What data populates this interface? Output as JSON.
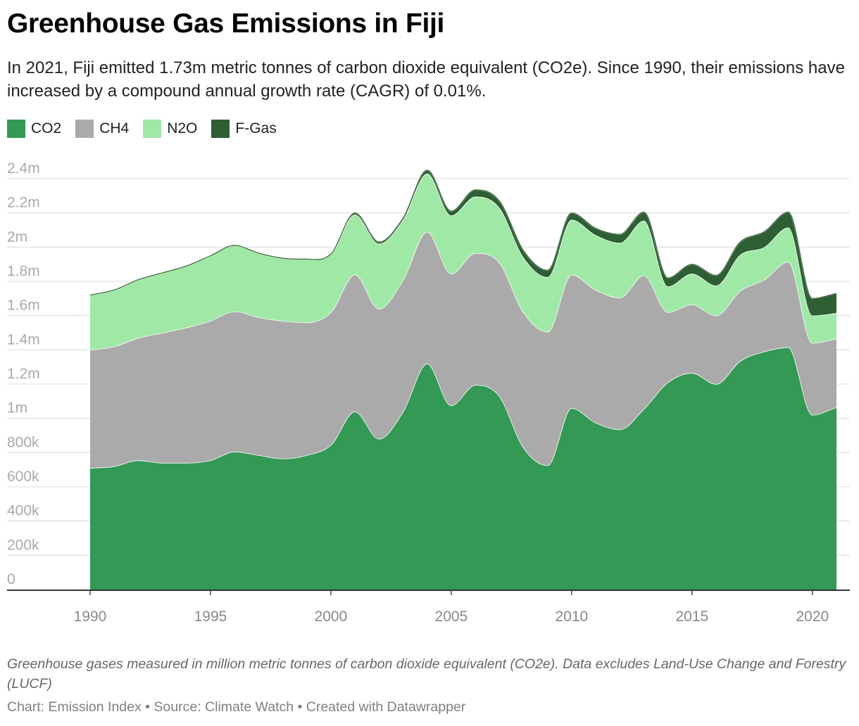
{
  "title": "Greenhouse Gas Emissions in Fiji",
  "subtitle": "In 2021, Fiji emitted 1.73m metric tonnes of carbon dioxide equivalent (CO2e). Since 1990, their emissions have increased by a compound annual growth rate (CAGR) of 0.01%.",
  "legend": [
    {
      "label": "CO2",
      "color": "#339955"
    },
    {
      "label": "CH4",
      "color": "#aaaaaa"
    },
    {
      "label": "N2O",
      "color": "#a0e8a6"
    },
    {
      "label": "F-Gas",
      "color": "#2e5e34"
    }
  ],
  "footer": {
    "note": "Greenhouse gases measured in million metric tonnes of carbon dioxide equivalent (CO2e). Data excludes Land-Use Change and Forestry (LUCF)",
    "credit": "Chart: Emission Index • Source: Climate Watch • Created with Datawrapper"
  },
  "chart_data": {
    "type": "area",
    "stacked": true,
    "x": [
      1990,
      1991,
      1992,
      1993,
      1994,
      1995,
      1996,
      1997,
      1998,
      1999,
      2000,
      2001,
      2002,
      2003,
      2004,
      2005,
      2006,
      2007,
      2008,
      2009,
      2010,
      2011,
      2012,
      2013,
      2014,
      2015,
      2016,
      2017,
      2018,
      2019,
      2020,
      2021
    ],
    "series": [
      {
        "name": "CO2",
        "color": "#339955",
        "values": [
          710000,
          720000,
          755000,
          740000,
          740000,
          755000,
          805000,
          785000,
          765000,
          785000,
          845000,
          1040000,
          880000,
          1040000,
          1320000,
          1075000,
          1195000,
          1130000,
          830000,
          725000,
          1060000,
          975000,
          935000,
          1055000,
          1210000,
          1265000,
          1200000,
          1335000,
          1390000,
          1415000,
          1020000,
          1065000
        ]
      },
      {
        "name": "CH4",
        "color": "#aaaaaa",
        "values": [
          690000,
          700000,
          715000,
          760000,
          790000,
          815000,
          820000,
          805000,
          805000,
          775000,
          775000,
          800000,
          760000,
          770000,
          770000,
          770000,
          770000,
          780000,
          790000,
          780000,
          780000,
          775000,
          770000,
          780000,
          410000,
          400000,
          400000,
          410000,
          420000,
          500000,
          420000,
          400000
        ]
      },
      {
        "name": "N2O",
        "color": "#a0e8a6",
        "values": [
          320000,
          330000,
          340000,
          350000,
          360000,
          380000,
          385000,
          375000,
          365000,
          370000,
          340000,
          350000,
          380000,
          350000,
          340000,
          340000,
          330000,
          320000,
          320000,
          320000,
          320000,
          320000,
          320000,
          320000,
          150000,
          180000,
          175000,
          210000,
          190000,
          200000,
          160000,
          150000
        ]
      },
      {
        "name": "F-Gas",
        "color": "#2e5e34",
        "values": [
          0,
          0,
          0,
          0,
          0,
          0,
          0,
          0,
          0,
          0,
          0,
          10000,
          10000,
          10000,
          20000,
          25000,
          40000,
          40000,
          40000,
          40000,
          40000,
          40000,
          50000,
          50000,
          50000,
          55000,
          60000,
          75000,
          90000,
          90000,
          100000,
          115000
        ]
      }
    ],
    "ylim": [
      0,
      2400000
    ],
    "yticks": [
      0,
      200000,
      400000,
      600000,
      800000,
      1000000,
      1200000,
      1400000,
      1600000,
      1800000,
      2000000,
      2200000,
      2400000
    ],
    "ytick_labels": [
      "0",
      "200k",
      "400k",
      "600k",
      "800k",
      "1m",
      "1.2m",
      "1.4m",
      "1.6m",
      "1.8m",
      "2m",
      "2.2m",
      "2.4m"
    ],
    "xticks": [
      1990,
      1995,
      2000,
      2005,
      2010,
      2015,
      2020
    ],
    "xtick_labels": [
      "1990",
      "1995",
      "2000",
      "2005",
      "2010",
      "2015",
      "2020"
    ],
    "grid": true,
    "legend_position": "top-left"
  }
}
